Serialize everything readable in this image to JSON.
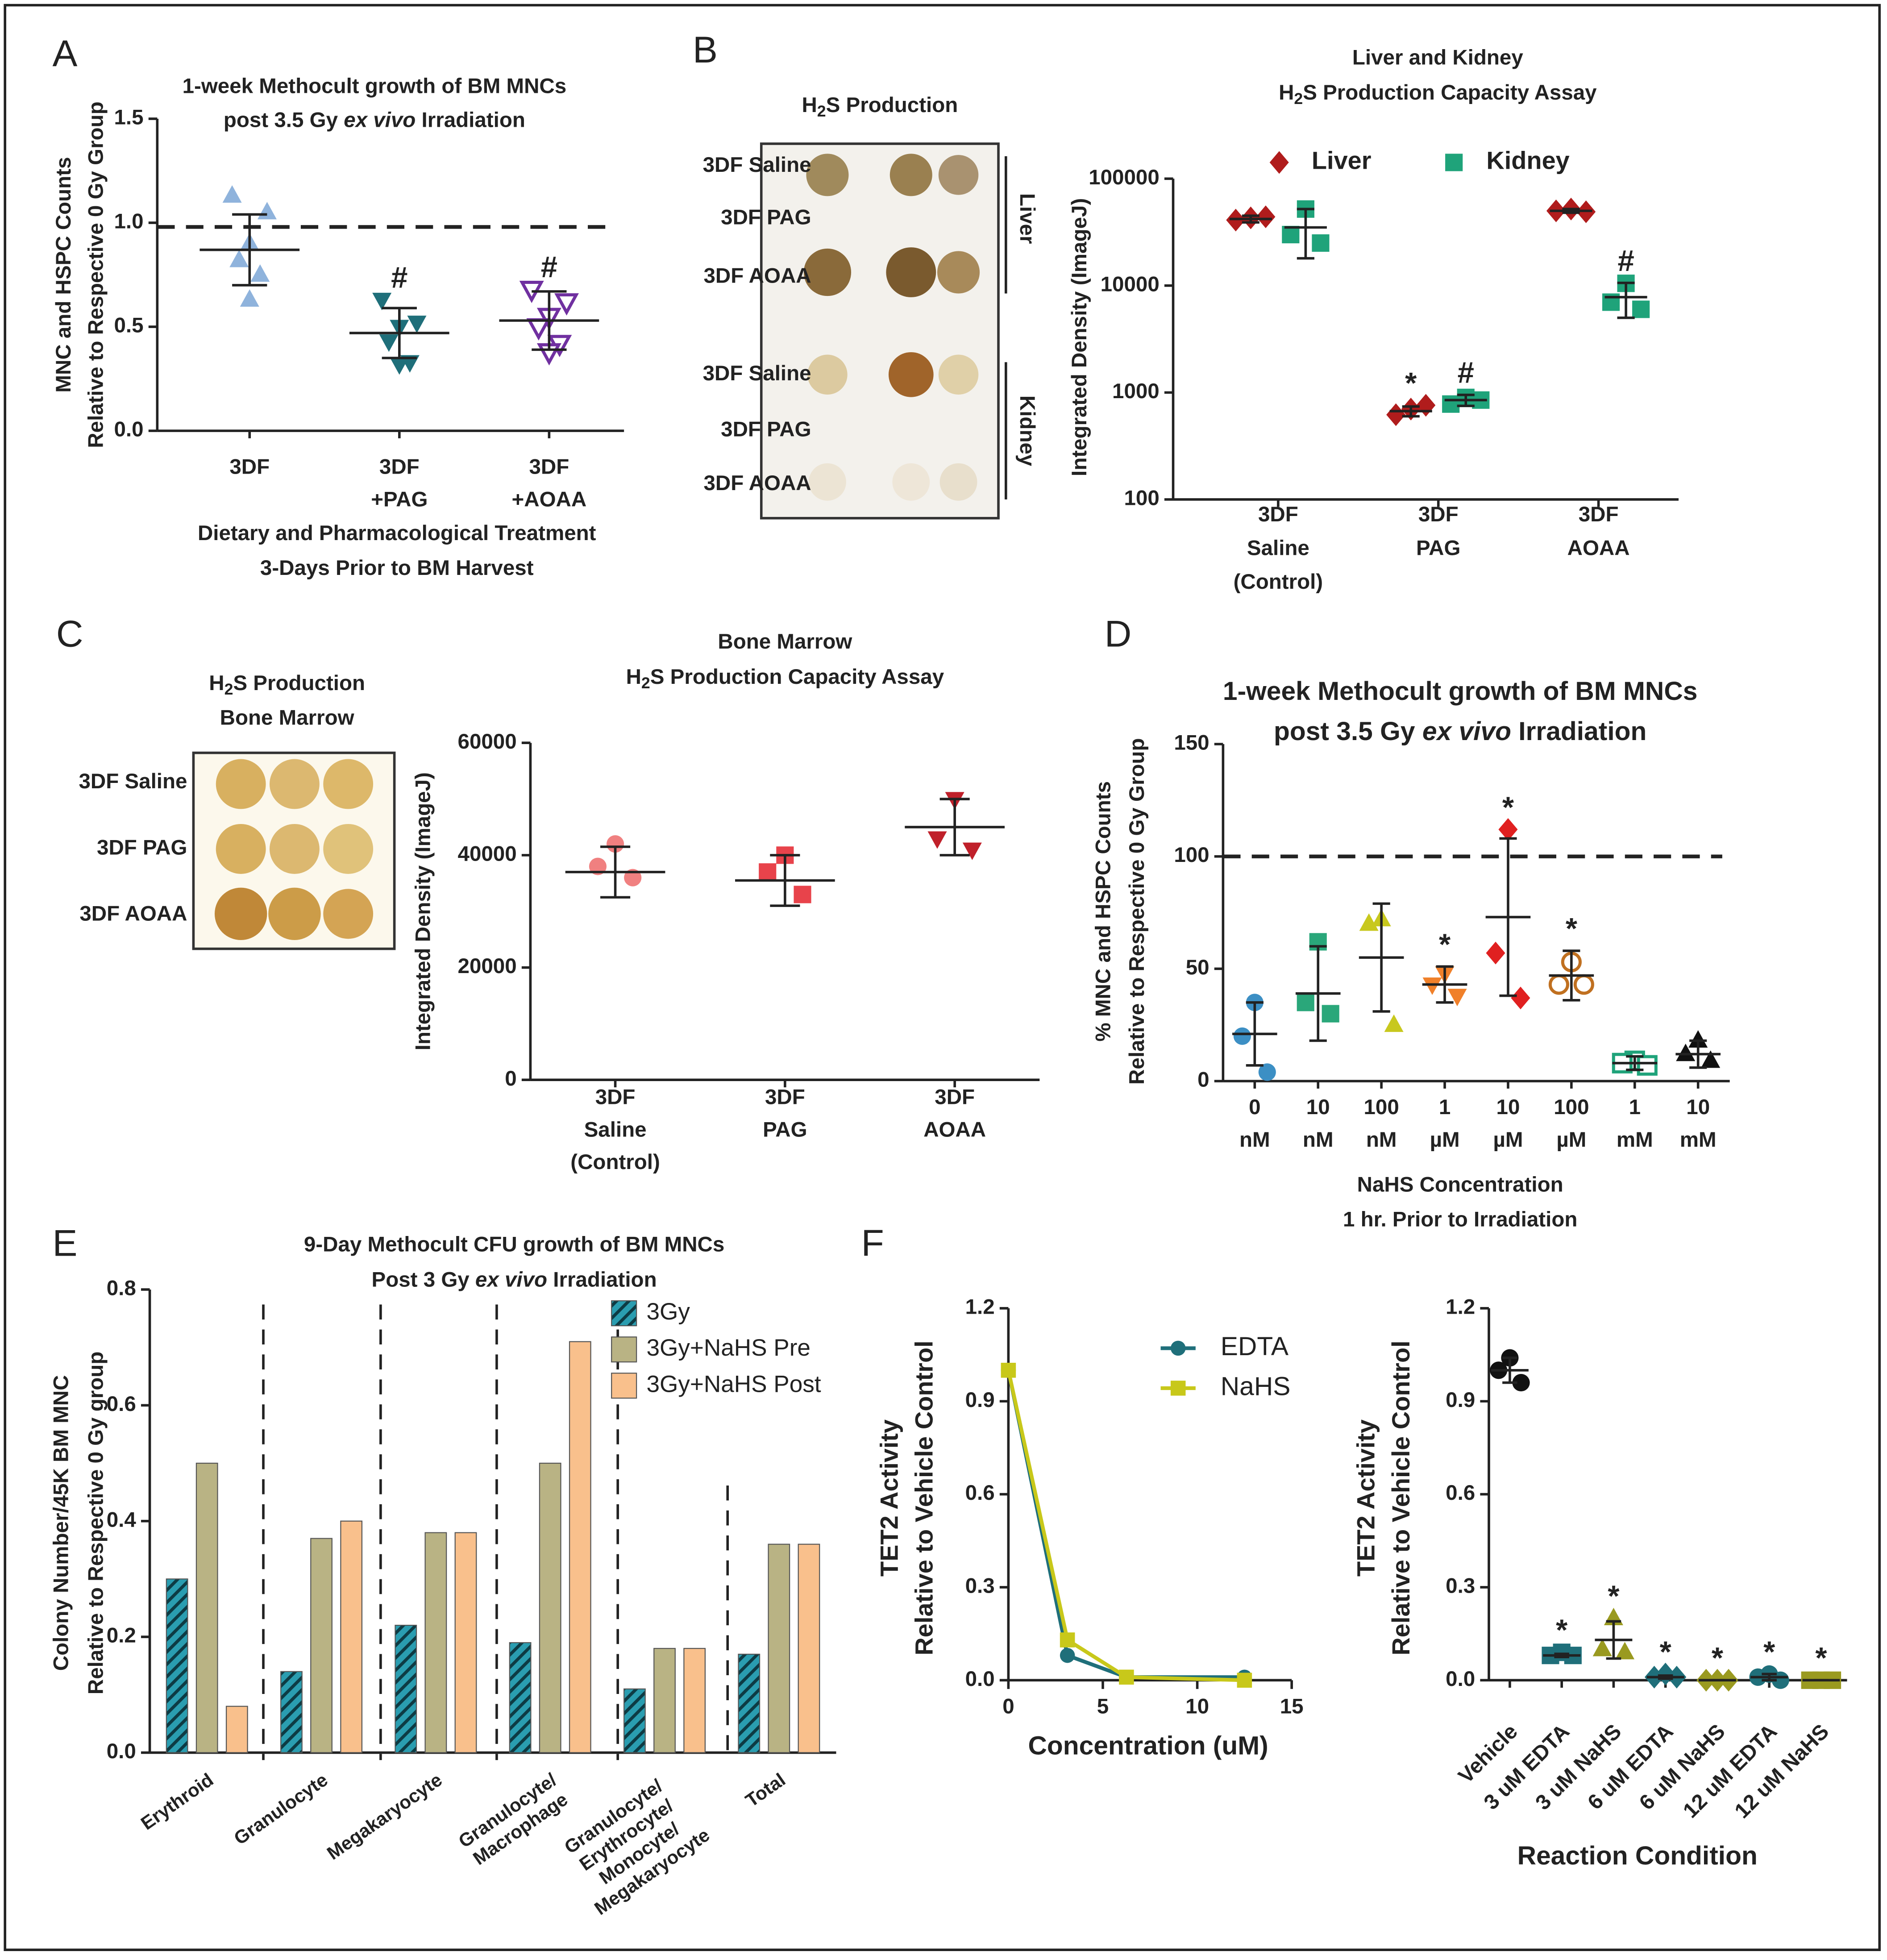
{
  "chart_data": [
    {
      "type": "dotplot",
      "panel": "A",
      "title": [
        "1-week Methocult growth of BM MNCs",
        [
          "post 3.5 Gy ",
          "ex vivo",
          " Irradiation"
        ]
      ],
      "ylabel": [
        "MNC and HSPC Counts",
        "Relative to Respective 0 Gy Group"
      ],
      "xlabel": [
        "Dietary and Pharmacological Treatment",
        "3-Days Prior to BM Harvest"
      ],
      "categories": [
        "3DF",
        [
          "3DF",
          "+PAG"
        ],
        [
          "3DF",
          "+AOAA"
        ]
      ],
      "ylim": [
        0,
        1.5
      ],
      "yticks": [
        {
          "value": 0,
          "label": "0.0"
        },
        0.5,
        {
          "value": 1,
          "label": "1.0"
        },
        1.5
      ],
      "ref_line": 0.98,
      "groups": [
        {
          "color": "#8fb3dc",
          "marker": "triangle-up",
          "values": [
            1.13,
            1.05,
            0.9,
            0.82,
            0.75,
            0.63
          ],
          "mean": 0.87,
          "sd": 0.17
        },
        {
          "color": "#1f6f7a",
          "marker": "triangle-down",
          "values": [
            0.63,
            0.52,
            0.5,
            0.43,
            0.33,
            0.32
          ],
          "mean": 0.47,
          "sd": 0.12,
          "annotation": "#"
        },
        {
          "color": "#7030a0",
          "marker": "triangle-down-open",
          "values": [
            0.68,
            0.62,
            0.55,
            0.5,
            0.42,
            0.38
          ],
          "mean": 0.53,
          "sd": 0.14,
          "annotation": "#"
        }
      ]
    },
    {
      "type": "blot",
      "panel": "B",
      "title": [
        [
          "H",
          "2",
          "S Production"
        ]
      ],
      "rows": [
        "3DF Saline",
        "3DF PAG",
        "3DF AOAA",
        "3DF Saline",
        "3DF PAG",
        "3DF AOAA"
      ],
      "groups": [
        "Liver",
        "Kidney"
      ]
    },
    {
      "type": "dotplot",
      "title": [
        "Liver and Kidney",
        [
          "H",
          "2",
          "S Production Capacity Assay"
        ]
      ],
      "ylabel": [
        "Integrated Density  (ImageJ)"
      ],
      "categories": [
        [
          "3DF",
          "Saline",
          "(Control)"
        ],
        [
          "3DF",
          "PAG"
        ],
        [
          "3DF",
          "AOAA"
        ]
      ],
      "log_scale": true,
      "ylim": [
        100,
        100000
      ],
      "yticks": [
        100,
        1000,
        10000,
        100000
      ],
      "series": [
        {
          "name": "Liver",
          "color": "#b01c1c",
          "marker": "diamond",
          "groups": [
            {
              "values": [
                43000,
                41000,
                44000
              ],
              "mean": 42000,
              "sd": 3000
            },
            {
              "values": [
                700,
                620,
                760
              ],
              "mean": 670,
              "sd": 70,
              "annotation": "*"
            },
            {
              "values": [
                52000,
                50000,
                49000
              ],
              "mean": 50000,
              "sd": 2000
            }
          ]
        },
        {
          "name": "Kidney",
          "color": "#1fa37a",
          "marker": "square",
          "groups": [
            {
              "values": [
                52000,
                30000,
                25000
              ],
              "mean": 35000,
              "sd": 17000
            },
            {
              "values": [
                900,
                780,
                850
              ],
              "mean": 850,
              "sd": 100,
              "annotation": "#"
            },
            {
              "values": [
                10500,
                7000,
                6000
              ],
              "mean": 7800,
              "sd": 2800,
              "annotation": "#"
            }
          ]
        }
      ]
    },
    {
      "type": "blot",
      "panel": "C",
      "title": [
        [
          "H",
          "2",
          "S Production"
        ],
        "Bone Marrow"
      ],
      "rows": [
        "3DF Saline",
        "3DF PAG",
        "3DF AOAA"
      ]
    },
    {
      "type": "dotplot",
      "title": [
        "Bone Marrow",
        [
          "H",
          "2",
          "S Production Capacity Assay"
        ]
      ],
      "ylabel": [
        "Integrated Density  (ImageJ)"
      ],
      "categories": [
        [
          "3DF",
          "Saline",
          "(Control)"
        ],
        [
          "3DF",
          "PAG"
        ],
        [
          "3DF",
          "AOAA"
        ]
      ],
      "ylim": [
        0,
        60000
      ],
      "yticks": [
        0,
        20000,
        40000,
        60000
      ],
      "groups": [
        {
          "color": "#f08080",
          "marker": "circle",
          "values": [
            42000,
            38000,
            36000
          ],
          "mean": 37000,
          "sd": 4500
        },
        {
          "color": "#e8434b",
          "marker": "square",
          "values": [
            40000,
            37000,
            33000
          ],
          "mean": 35500,
          "sd": 4500
        },
        {
          "color": "#c0202a",
          "marker": "triangle-down",
          "values": [
            50000,
            43000,
            41000
          ],
          "mean": 45000,
          "sd": 5000
        }
      ]
    },
    {
      "type": "dotplot",
      "panel": "D",
      "title": [
        "1-week Methocult growth of BM MNCs",
        [
          "post 3.5 Gy ",
          "ex vivo",
          " Irradiation"
        ]
      ],
      "ylabel": [
        "% MNC and HSPC Counts",
        "Relative to Respective 0 Gy Group"
      ],
      "xlabel": [
        "NaHS Concentration",
        "1 hr. Prior to Irradiation"
      ],
      "categories": [
        [
          "0",
          "nM"
        ],
        [
          "10",
          "nM"
        ],
        [
          "100",
          "nM"
        ],
        [
          "1",
          "µM"
        ],
        [
          "10",
          "µM"
        ],
        [
          "100",
          "µM"
        ],
        [
          "1",
          "mM"
        ],
        [
          "10",
          "mM"
        ]
      ],
      "ylim": [
        0,
        150
      ],
      "yticks": [
        0,
        50,
        100,
        150
      ],
      "ref_line": 100,
      "groups": [
        {
          "color": "#3c8fc4",
          "marker": "circle",
          "values": [
            35,
            20,
            4
          ],
          "mean": 21,
          "sd": 14
        },
        {
          "color": "#2aa77a",
          "marker": "square",
          "values": [
            62,
            35,
            30
          ],
          "mean": 39,
          "sd": 21
        },
        {
          "color": "#c8c81e",
          "marker": "triangle-up",
          "values": [
            72,
            70,
            25
          ],
          "mean": 55,
          "sd": 24
        },
        {
          "color": "#f0802a",
          "marker": "triangle-down",
          "values": [
            48,
            43,
            38
          ],
          "mean": 43,
          "sd": 8,
          "annotation": "*"
        },
        {
          "color": "#e02020",
          "marker": "diamond",
          "values": [
            112,
            57,
            37
          ],
          "mean": 73,
          "sd": 35,
          "annotation": "*"
        },
        {
          "color": "#c07020",
          "marker": "circle-open",
          "values": [
            53,
            43,
            43
          ],
          "mean": 47,
          "sd": 11,
          "annotation": "*"
        },
        {
          "color": "#1fa37a",
          "marker": "square-open",
          "values": [
            9,
            8,
            7
          ],
          "mean": 8,
          "sd": 3
        },
        {
          "color": "#111111",
          "marker": "triangle-up",
          "values": [
            18,
            12,
            9
          ],
          "mean": 12,
          "sd": 6
        }
      ]
    },
    {
      "type": "bar",
      "panel": "E",
      "title": [
        "9-Day Methocult CFU growth of BM MNCs",
        [
          "Post 3 Gy ",
          "ex vivo",
          " Irradiation"
        ]
      ],
      "ylabel": [
        "Colony Number/45K BM MNC",
        "Relative to Respective 0 Gy group"
      ],
      "categories": [
        [
          "Erythroid"
        ],
        [
          "Granulocyte"
        ],
        [
          "Megakaryocyte"
        ],
        [
          "Granulocyte/",
          "Macrophage"
        ],
        [
          "Granulocyte/",
          "Erythrocyte/",
          "Monocyte/",
          "Megakaryocyte"
        ],
        [
          "Total"
        ]
      ],
      "ylim": [
        0,
        0.8
      ],
      "yticks": [
        {
          "value": 0,
          "label": "0.0"
        },
        0.2,
        0.4,
        0.6,
        0.8
      ],
      "series": [
        {
          "name": "3Gy",
          "color": "#2a9db0",
          "pattern": "hatch",
          "values": [
            0.3,
            0.14,
            0.22,
            0.19,
            0.11,
            0.17
          ]
        },
        {
          "name": "3Gy+NaHS Pre",
          "color": "#b9b384",
          "values": [
            0.5,
            0.37,
            0.38,
            0.5,
            0.18,
            0.36
          ]
        },
        {
          "name": "3Gy+NaHS Post",
          "color": "#f9c08c",
          "values": [
            0.08,
            0.4,
            0.38,
            0.71,
            0.18,
            0.36
          ]
        }
      ]
    },
    {
      "type": "line",
      "panel": "F",
      "ylabel": [
        "TET2 Activity",
        "Relative to Vehicle Control"
      ],
      "xlabel": [
        "Concentration (uM)"
      ],
      "x": [
        0,
        3.125,
        6.25,
        12.5
      ],
      "xlim": [
        0,
        15
      ],
      "xticks": [
        0,
        5,
        10,
        15
      ],
      "ylim": [
        0,
        1.2
      ],
      "yticks": [
        {
          "value": 0,
          "label": "0.0"
        },
        0.3,
        0.6,
        0.9,
        1.2
      ],
      "series": [
        {
          "name": "EDTA",
          "color": "#1f6f7a",
          "marker": "circle",
          "values": [
            1.0,
            0.08,
            0.01,
            0.01
          ]
        },
        {
          "name": "NaHS",
          "color": "#c8c81a",
          "marker": "square",
          "values": [
            1.0,
            0.13,
            0.01,
            0.0
          ]
        }
      ]
    },
    {
      "type": "dotplot",
      "ylabel": [
        "TET2 Activity",
        "Relative to Vehicle Control"
      ],
      "xlabel": [
        "Reaction Condition"
      ],
      "categories": [
        "Vehicle",
        "3 uM EDTA",
        "3 uM NaHS",
        "6 uM EDTA",
        "6 uM NaHS",
        "12 uM EDTA",
        "12 uM NaHS"
      ],
      "ylim": [
        0,
        1.2
      ],
      "yticks": [
        {
          "value": 0,
          "label": "0.0"
        },
        0.3,
        0.6,
        0.9,
        1.2
      ],
      "groups": [
        {
          "color": "#111111",
          "marker": "circle",
          "values": [
            1.04,
            1.0,
            0.96
          ],
          "mean": 1.0,
          "sd": 0.04
        },
        {
          "color": "#1f6f7a",
          "marker": "square",
          "values": [
            0.09,
            0.08,
            0.08
          ],
          "mean": 0.08,
          "sd": 0.005,
          "annotation": "*"
        },
        {
          "color": "#9a9a20",
          "marker": "triangle-up",
          "values": [
            0.2,
            0.1,
            0.09
          ],
          "mean": 0.13,
          "sd": 0.06,
          "annotation": "*"
        },
        {
          "color": "#1f6f7a",
          "marker": "diamond",
          "values": [
            0.02,
            0.01,
            0.01
          ],
          "mean": 0.01,
          "sd": 0.005,
          "annotation": "*"
        },
        {
          "color": "#9a9a20",
          "marker": "diamond",
          "values": [
            0,
            0,
            0
          ],
          "mean": 0,
          "sd": 0,
          "annotation": "*"
        },
        {
          "color": "#1f6f7a",
          "marker": "circle",
          "values": [
            0.02,
            0.01,
            0.0
          ],
          "mean": 0.01,
          "sd": 0.01,
          "annotation": "*"
        },
        {
          "color": "#9a9a20",
          "marker": "square",
          "values": [
            0,
            0,
            0
          ],
          "mean": 0,
          "sd": 0,
          "annotation": "*"
        }
      ]
    }
  ]
}
